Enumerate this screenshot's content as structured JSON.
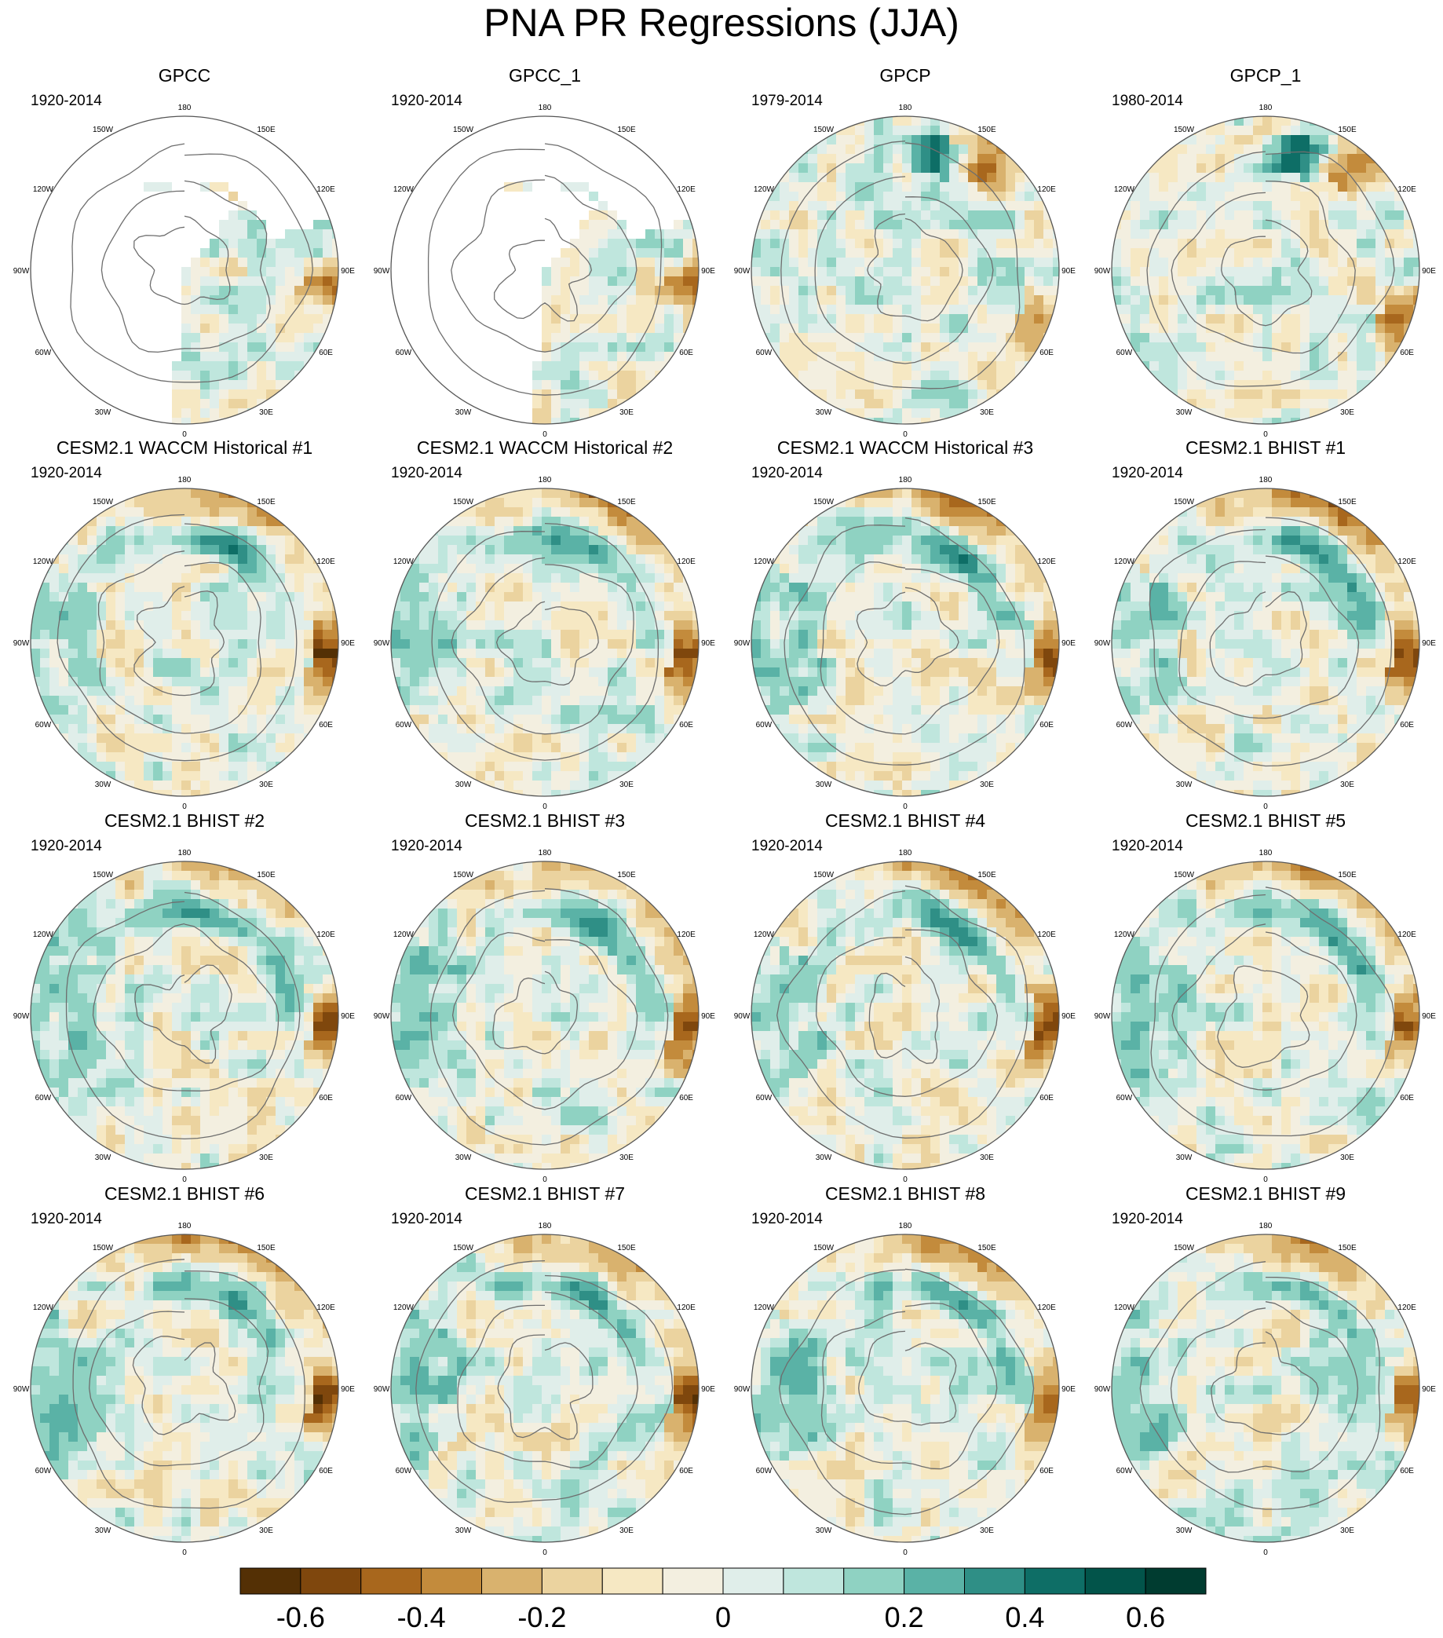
{
  "title": "PNA PR Regressions (JJA)",
  "panels": [
    {
      "title": "GPCC",
      "period": "1920-2014",
      "kind": "gpcc",
      "variant": 0
    },
    {
      "title": "GPCC_1",
      "period": "1920-2014",
      "kind": "gpcc",
      "variant": 1
    },
    {
      "title": "GPCP",
      "period": "1979-2014",
      "kind": "gpcp",
      "variant": 0
    },
    {
      "title": "GPCP_1",
      "period": "1980-2014",
      "kind": "gpcp",
      "variant": 1
    },
    {
      "title": "CESM2.1 WACCM Historical #1",
      "period": "1920-2014",
      "kind": "model",
      "variant": 1
    },
    {
      "title": "CESM2.1 WACCM Historical #2",
      "period": "1920-2014",
      "kind": "model",
      "variant": 2
    },
    {
      "title": "CESM2.1 WACCM Historical #3",
      "period": "1920-2014",
      "kind": "model",
      "variant": 3
    },
    {
      "title": "CESM2.1 BHIST #1",
      "period": "1920-2014",
      "kind": "model",
      "variant": 4
    },
    {
      "title": "CESM2.1 BHIST #2",
      "period": "1920-2014",
      "kind": "model",
      "variant": 5
    },
    {
      "title": "CESM2.1 BHIST #3",
      "period": "1920-2014",
      "kind": "model",
      "variant": 6
    },
    {
      "title": "CESM2.1 BHIST #4",
      "period": "1920-2014",
      "kind": "model",
      "variant": 7
    },
    {
      "title": "CESM2.1 BHIST #5",
      "period": "1920-2014",
      "kind": "model",
      "variant": 8
    },
    {
      "title": "CESM2.1 BHIST #6",
      "period": "1920-2014",
      "kind": "model",
      "variant": 9
    },
    {
      "title": "CESM2.1 BHIST #7",
      "period": "1920-2014",
      "kind": "model",
      "variant": 10
    },
    {
      "title": "CESM2.1 BHIST #8",
      "period": "1920-2014",
      "kind": "model",
      "variant": 11
    },
    {
      "title": "CESM2.1 BHIST #9",
      "period": "1920-2014",
      "kind": "model",
      "variant": 12
    }
  ],
  "longitude_labels": [
    "180",
    "150E",
    "120E",
    "90E",
    "60E",
    "30E",
    "0",
    "30W",
    "60W",
    "90W",
    "120W",
    "150W"
  ],
  "colorbar": {
    "colors": [
      "#543005",
      "#7f470d",
      "#a8671d",
      "#c38b3c",
      "#d9b26e",
      "#ebd39f",
      "#f6e8c3",
      "#f3efe0",
      "#e0eeea",
      "#bfe6dd",
      "#8fd2c2",
      "#5ab2a6",
      "#2f8f86",
      "#0e6e66",
      "#02544a",
      "#003c30"
    ],
    "tick_labels": [
      "-0.6",
      "-0.4",
      "-0.2",
      "0",
      "0.2",
      "0.4",
      "0.6"
    ],
    "tick_values": [
      -0.6,
      -0.4,
      -0.2,
      0,
      0.2,
      0.4,
      0.6
    ],
    "levels": [
      -0.7,
      -0.6,
      -0.5,
      -0.4,
      -0.3,
      -0.2,
      -0.1,
      -0.05,
      0,
      0.05,
      0.1,
      0.2,
      0.3,
      0.4,
      0.5,
      0.6,
      0.7
    ]
  },
  "chart_data": {
    "type": "heatmap",
    "title": "PNA PR Regressions (JJA)",
    "projection": "north polar stereographic",
    "grid": false,
    "panel_count": 16,
    "layout": "4x4",
    "colorbar_range": [
      -0.7,
      0.7
    ],
    "colorbar_ticks": [
      -0.6,
      -0.4,
      -0.2,
      0,
      0.2,
      0.4,
      0.6
    ]
  }
}
